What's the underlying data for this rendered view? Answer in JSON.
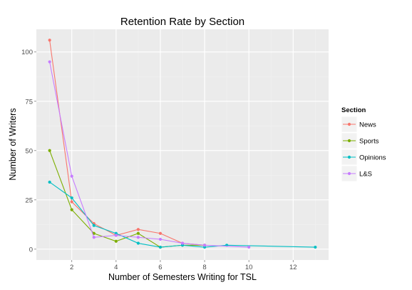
{
  "chart_data": {
    "type": "line",
    "title": "Retention Rate by Section",
    "xlabel": "Number of Semesters Writing for TSL",
    "ylabel": "Number of Writers",
    "xlim": [
      0.4,
      13.6
    ],
    "ylim": [
      -5.5,
      111.5
    ],
    "x_ticks": [
      2,
      4,
      6,
      8,
      10,
      12
    ],
    "y_ticks": [
      0,
      25,
      50,
      75,
      100
    ],
    "grid": true,
    "legend": {
      "title": "Section",
      "placement": "right"
    },
    "series": [
      {
        "name": "News",
        "color": "#F8766D",
        "points": [
          [
            1,
            106
          ],
          [
            2,
            24
          ],
          [
            3,
            13
          ],
          [
            4,
            7
          ],
          [
            5,
            10
          ],
          [
            6,
            8
          ],
          [
            7,
            3
          ],
          [
            8,
            2
          ]
        ]
      },
      {
        "name": "Sports",
        "color": "#7CAE00",
        "points": [
          [
            1,
            50
          ],
          [
            2,
            20
          ],
          [
            3,
            8
          ],
          [
            4,
            4
          ],
          [
            5,
            8
          ],
          [
            6,
            1
          ],
          [
            7,
            2
          ],
          [
            8,
            2
          ]
        ]
      },
      {
        "name": "Opinions",
        "color": "#00BFC4",
        "points": [
          [
            1,
            34
          ],
          [
            2,
            26
          ],
          [
            3,
            12
          ],
          [
            4,
            8
          ],
          [
            5,
            3
          ],
          [
            6,
            1
          ],
          [
            7,
            2
          ],
          [
            8,
            1
          ],
          [
            9,
            2
          ],
          [
            13,
            1
          ]
        ]
      },
      {
        "name": "L&S",
        "color": "#C77CFF",
        "points": [
          [
            1,
            95
          ],
          [
            2,
            37
          ],
          [
            3,
            6
          ],
          [
            4,
            7
          ],
          [
            5,
            6
          ],
          [
            6,
            5
          ],
          [
            7,
            3
          ],
          [
            8,
            2
          ],
          [
            10,
            1
          ]
        ]
      }
    ]
  }
}
